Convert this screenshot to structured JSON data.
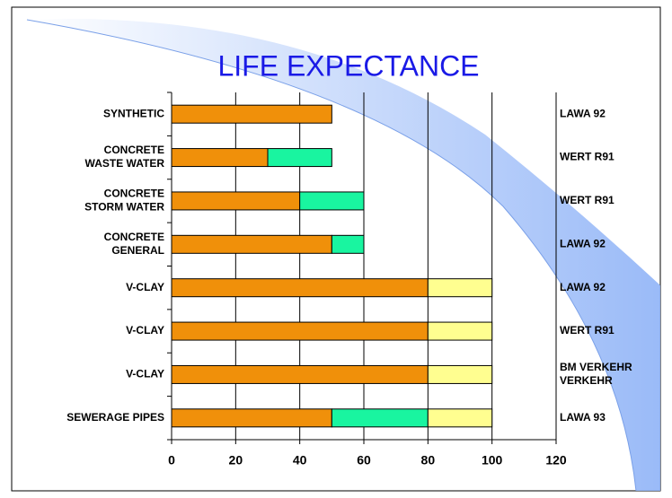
{
  "chart_data": {
    "type": "stacked-bar-horizontal",
    "title": "LIFE EXPECTANCE",
    "categories": [
      [
        "SYNTHETIC"
      ],
      [
        "CONCRETE",
        "WASTE WATER"
      ],
      [
        "CONCRETE",
        "STORM WATER"
      ],
      [
        "CONCRETE",
        "GENERAL"
      ],
      [
        "V-CLAY"
      ],
      [
        "V-CLAY"
      ],
      [
        "V-CLAY"
      ],
      [
        "SEWERAGE PIPES"
      ]
    ],
    "series": [
      {
        "color": "#f0900a",
        "values": [
          50,
          30,
          40,
          50,
          80,
          80,
          80,
          50
        ]
      },
      {
        "color": "#19f5a0",
        "values": [
          null,
          20,
          20,
          10,
          null,
          null,
          null,
          30
        ]
      },
      {
        "color": "#fffe90",
        "values": [
          null,
          null,
          null,
          null,
          20,
          20,
          20,
          20
        ]
      }
    ],
    "annotations": [
      [
        "LAWA 92"
      ],
      [
        "WERT R91"
      ],
      [
        "WERT R91"
      ],
      [
        "LAWA 92"
      ],
      [
        "LAWA 92"
      ],
      [
        "WERT R91"
      ],
      [
        "BM VERKEHR",
        "VERKEHR"
      ],
      [
        "LAWA 93"
      ]
    ],
    "xlim": [
      0,
      120
    ],
    "xticks": [
      0,
      20,
      40,
      60,
      80,
      100,
      120
    ],
    "grid": true
  }
}
